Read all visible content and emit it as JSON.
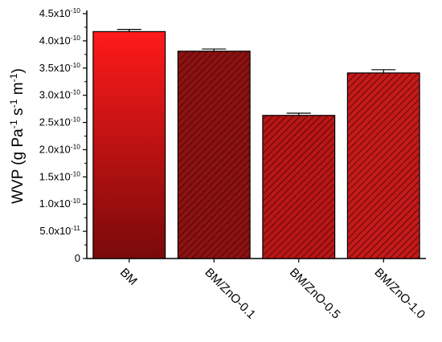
{
  "chart_data": {
    "type": "bar",
    "categories": [
      "BM",
      "BM/ZnO-0.1",
      "BM/ZnO-0.5",
      "BM/ZnO-1.0"
    ],
    "values": [
      4.17e-10,
      3.81e-10,
      2.63e-10,
      3.41e-10
    ],
    "errors": [
      4e-12,
      4e-12,
      4e-12,
      6e-12
    ],
    "colors": [
      "#ee1010",
      "#8c1212",
      "#b81616",
      "#c41a1a"
    ],
    "hatch": [
      false,
      true,
      true,
      true
    ],
    "ylabel": "WVP (g Pa-1 s-1 m-1)",
    "ylim": [
      0,
      4.5e-10
    ],
    "yticks": [
      0,
      {
        "value": 5e-11,
        "label": "5.0x10-11"
      },
      {
        "value": 1e-10,
        "label": "1.0x10-10"
      },
      {
        "value": 1.5e-10,
        "label": "1.5x10-10"
      },
      {
        "value": 2e-10,
        "label": "2.0x10-10"
      },
      {
        "value": 2.5e-10,
        "label": "2.5x10-10"
      },
      {
        "value": 3e-10,
        "label": "3.0x10-10"
      },
      {
        "value": 3.5e-10,
        "label": "3.5x10-10"
      },
      {
        "value": 4e-10,
        "label": "4.0x10-10"
      },
      {
        "value": 4.5e-10,
        "label": "4.5x10-10"
      }
    ]
  }
}
